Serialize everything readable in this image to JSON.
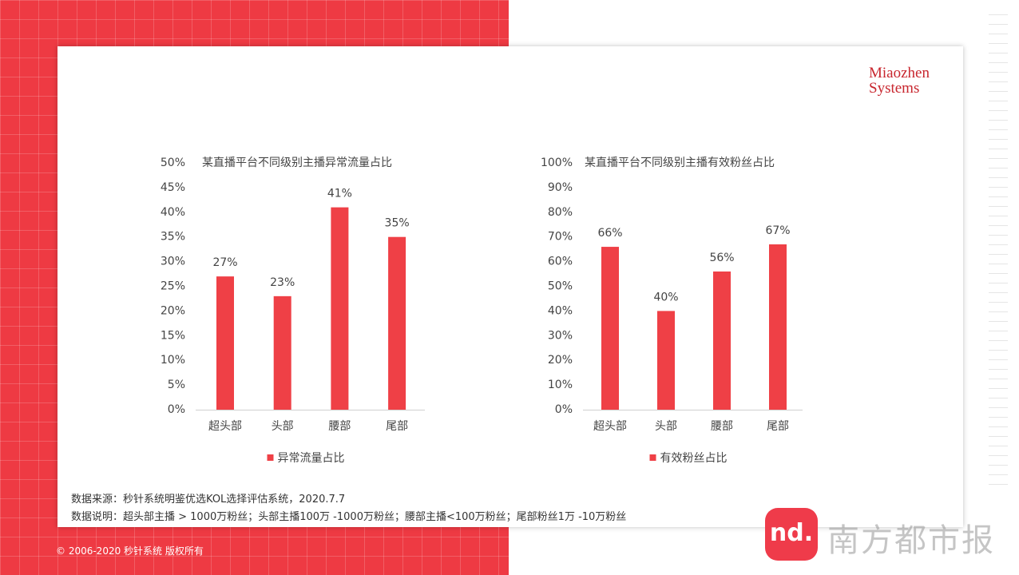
{
  "logo": "Miaozhen Systems",
  "notes": [
    "数据来源：秒针系统明鉴优选KOL选择评估系统，2020.7.7",
    "数据说明：超头部主播 > 1000万粉丝；头部主播100万 -1000万粉丝；腰部主播<100万粉丝；尾部粉丝1万 -10万粉丝"
  ],
  "copyright": "© 2006-2020 秒针系统 版权所有",
  "app_icon": "nd.",
  "watermark": "南方都市报",
  "chart_data": [
    {
      "type": "bar",
      "title": "某直播平台不同级别主播异常流量占比",
      "categories": [
        "超头部",
        "头部",
        "腰部",
        "尾部"
      ],
      "series": [
        {
          "name": "异常流量占比",
          "color": "#ef4046",
          "values": [
            27,
            23,
            41,
            35
          ],
          "value_labels": [
            "27%",
            "23%",
            "41%",
            "35%"
          ]
        }
      ],
      "ylim": [
        0,
        50
      ],
      "yticks": [
        {
          "value": 0,
          "label": "0%"
        },
        {
          "value": 5,
          "label": "5%"
        },
        {
          "value": 10,
          "label": "10%"
        },
        {
          "value": 15,
          "label": "15%"
        },
        {
          "value": 20,
          "label": "20%"
        },
        {
          "value": 25,
          "label": "25%"
        },
        {
          "value": 30,
          "label": "30%"
        },
        {
          "value": 35,
          "label": "35%"
        },
        {
          "value": 40,
          "label": "40%"
        },
        {
          "value": 45,
          "label": "45%"
        },
        {
          "value": 50,
          "label": "50%"
        }
      ],
      "grid": false,
      "legend": "bottom"
    },
    {
      "type": "bar",
      "title": "某直播平台不同级别主播有效粉丝占比",
      "categories": [
        "超头部",
        "头部",
        "腰部",
        "尾部"
      ],
      "series": [
        {
          "name": "有效粉丝占比",
          "color": "#ef4046",
          "values": [
            66,
            40,
            56,
            67
          ],
          "value_labels": [
            "66%",
            "40%",
            "56%",
            "67%"
          ]
        }
      ],
      "ylim": [
        0,
        100
      ],
      "yticks": [
        {
          "value": 0,
          "label": "0%"
        },
        {
          "value": 10,
          "label": "10%"
        },
        {
          "value": 20,
          "label": "20%"
        },
        {
          "value": 30,
          "label": "30%"
        },
        {
          "value": 40,
          "label": "40%"
        },
        {
          "value": 50,
          "label": "50%"
        },
        {
          "value": 60,
          "label": "60%"
        },
        {
          "value": 70,
          "label": "70%"
        },
        {
          "value": 80,
          "label": "80%"
        },
        {
          "value": 90,
          "label": "90%"
        },
        {
          "value": 100,
          "label": "100%"
        }
      ],
      "grid": false,
      "legend": "bottom"
    }
  ]
}
